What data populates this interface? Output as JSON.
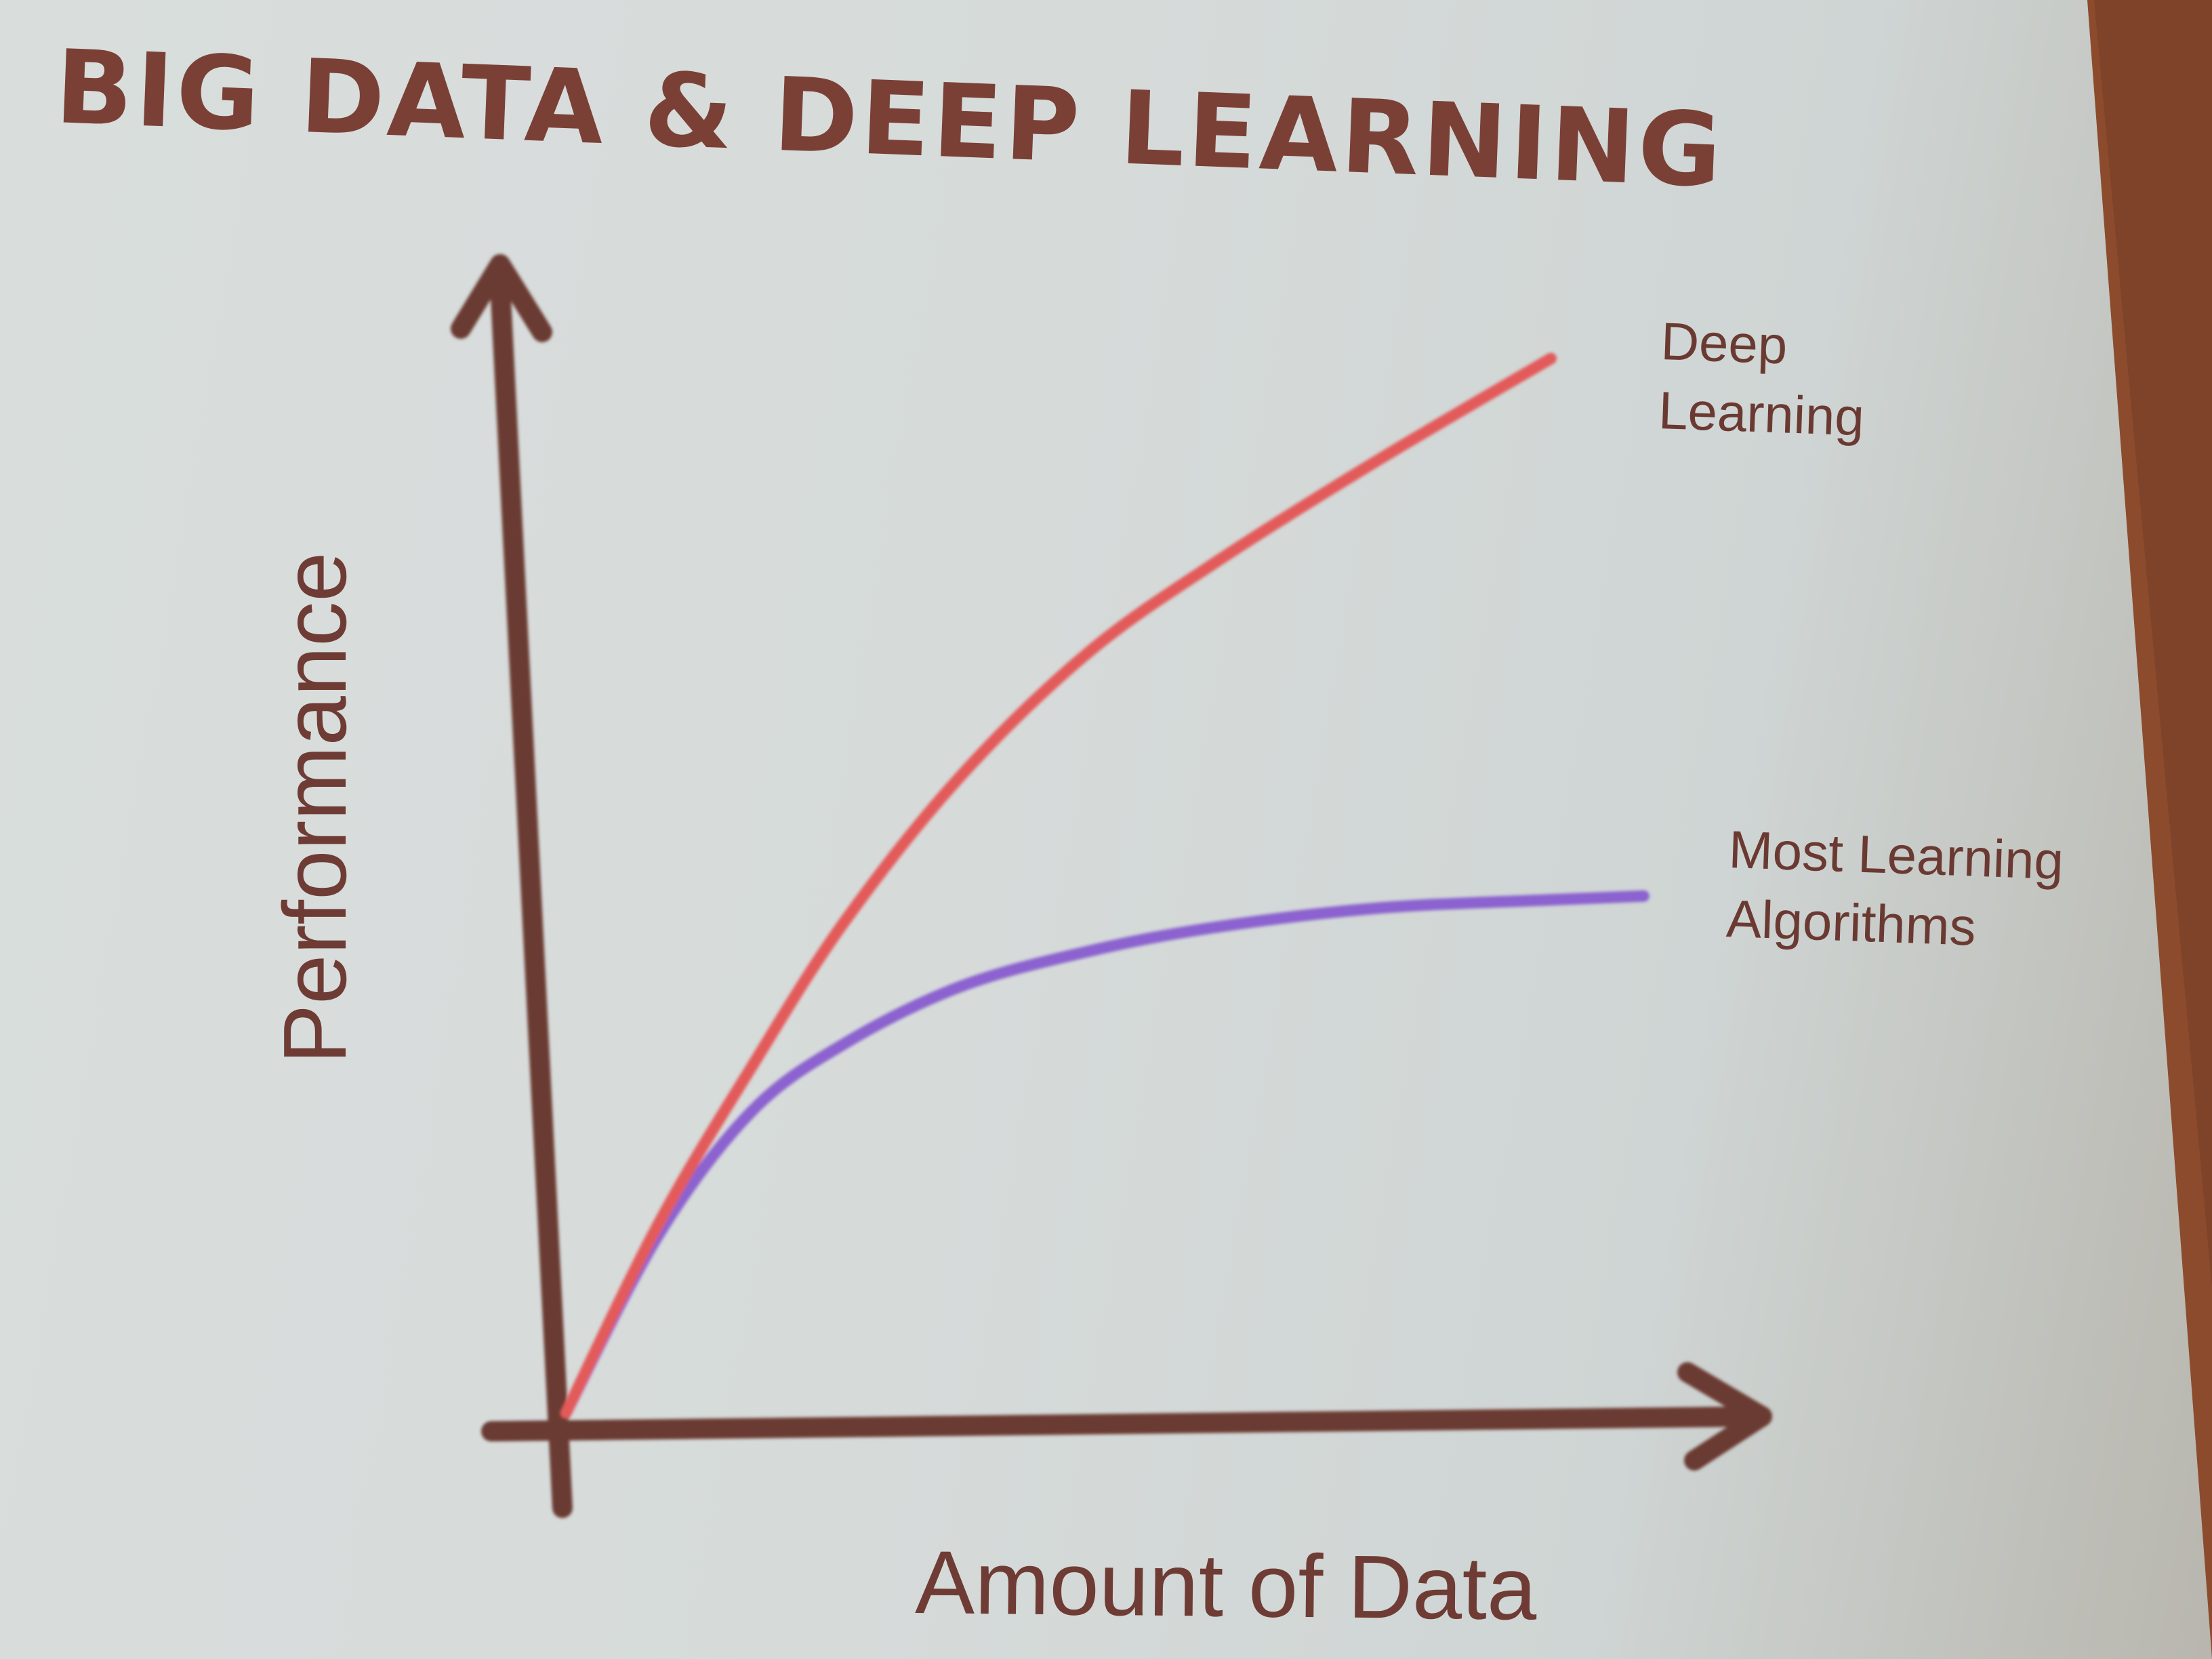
{
  "chart_data": {
    "type": "line",
    "title": "BIG DATA & DEEP LEARNING",
    "xlabel": "Amount of Data",
    "ylabel": "Performance",
    "grid": false,
    "xlim": [
      0,
      100
    ],
    "ylim": [
      0,
      100
    ],
    "series": [
      {
        "name": "Deep Learning",
        "color": "#e35a5a",
        "label_lines": [
          "Deep",
          "Learning"
        ],
        "x": [
          0,
          8,
          16,
          24,
          34,
          45,
          56,
          70,
          85
        ],
        "y": [
          0,
          17,
          31,
          44,
          57,
          68,
          76,
          85,
          94
        ]
      },
      {
        "name": "Most Learning Algorithms",
        "color": "#8b62cf",
        "label_lines": [
          "Most Learning",
          "Algorithms"
        ],
        "x": [
          0,
          8,
          16,
          24,
          34,
          45,
          56,
          70,
          85,
          93
        ],
        "y": [
          0,
          16,
          27,
          33,
          38,
          41,
          43,
          44.5,
          45,
          45.2
        ]
      }
    ],
    "axis_color": "#6b3b33"
  }
}
